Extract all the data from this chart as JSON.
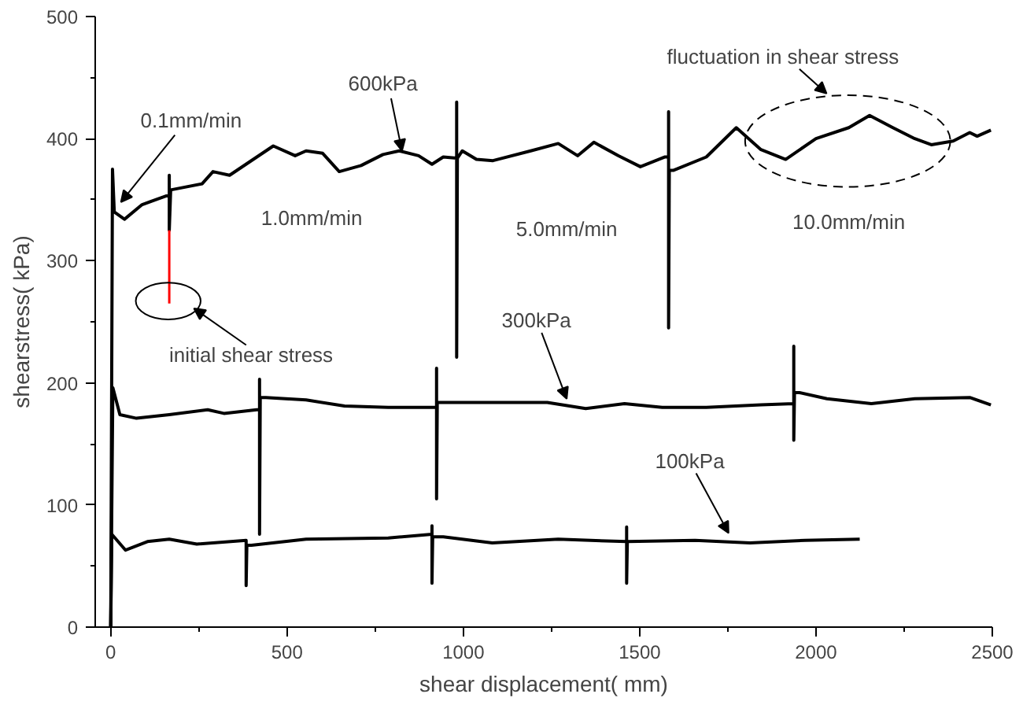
{
  "chart_data": {
    "type": "line",
    "xlabel": "shear displacement( mm)",
    "ylabel": "shearstress( kPa)",
    "xlim": [
      -44,
      2500
    ],
    "ylim": [
      0,
      500
    ],
    "xticks": [
      0,
      {
        "value": 250,
        "label": null
      },
      500,
      {
        "value": 750,
        "label": null
      },
      1000,
      {
        "value": 1250,
        "label": null
      },
      1500,
      {
        "value": 1750,
        "label": null
      },
      2000,
      {
        "value": 2250,
        "label": null
      },
      2500
    ],
    "yticks": [
      0,
      {
        "value": 50,
        "label": null
      },
      100,
      {
        "value": 150,
        "label": null
      },
      200,
      {
        "value": 250,
        "label": null
      },
      300,
      {
        "value": 350,
        "label": null
      },
      400,
      {
        "value": 450,
        "label": null
      },
      500
    ],
    "grid": false,
    "marker": "none",
    "line_style": "solid",
    "series": [
      {
        "color": "#000000",
        "x": [
          0,
          5,
          10,
          39,
          89,
          166,
          166,
          166,
          170,
          259,
          290,
          337,
          461,
          523,
          554,
          601,
          648,
          710,
          772,
          818,
          873,
          911,
          943,
          981,
          981,
          981,
          983,
          997,
          1037,
          1084,
          1191,
          1269,
          1324,
          1370,
          1440,
          1502,
          1572,
          1582,
          1582,
          1582,
          1584,
          1595,
          1689,
          1774,
          1844,
          1914,
          2000,
          2093,
          2152,
          2218,
          2280,
          2327,
          2389,
          2436,
          2457,
          2496
        ],
        "values": [
          0,
          375,
          340,
          334,
          346,
          354,
          370,
          325,
          358,
          363,
          373,
          370,
          394,
          386,
          390,
          388,
          373,
          378,
          387,
          390,
          386,
          379,
          385,
          384,
          430,
          221,
          384,
          390,
          383,
          382,
          390,
          396,
          386,
          397,
          386,
          377,
          385,
          385,
          422,
          245,
          374,
          374,
          385,
          409,
          391,
          383,
          400,
          409,
          419,
          409,
          400,
          395,
          398,
          405,
          402,
          407
        ]
      },
      {
        "color": "#000000",
        "x": [
          0,
          6,
          26,
          73,
          166,
          275,
          321,
          414,
          422,
          422,
          422,
          424,
          440,
          554,
          663,
          787,
          924,
          924,
          924,
          926,
          943,
          1082,
          1238,
          1347,
          1457,
          1564,
          1689,
          1844,
          1937,
          1937,
          1937,
          1939,
          1953,
          2031,
          2157,
          2280,
          2436,
          2496
        ],
        "values": [
          0,
          196,
          174,
          171,
          174,
          178,
          175,
          178,
          178,
          203,
          76,
          188,
          188,
          186,
          181,
          180,
          180,
          212,
          105,
          184,
          184,
          184,
          184,
          179,
          183,
          180,
          180,
          182,
          183,
          230,
          153,
          192,
          192,
          187,
          183,
          187,
          188,
          182
        ]
      },
      {
        "color": "#000000",
        "x": [
          0,
          3,
          42,
          104,
          166,
          244,
          384,
          384,
          386,
          399,
          554,
          787,
          911,
          911,
          911,
          913,
          943,
          1082,
          1269,
          1463,
          1463,
          1463,
          1465,
          1657,
          1813,
          1969,
          2124
        ],
        "values": [
          0,
          76,
          63,
          70,
          72,
          68,
          71,
          34,
          67,
          67,
          72,
          73,
          76,
          83,
          36,
          74,
          74,
          69,
          72,
          70,
          82,
          36,
          70,
          71,
          69,
          71,
          72
        ]
      },
      {
        "color": "#ff0000",
        "x": [
          166,
          166
        ],
        "values": [
          325,
          265
        ]
      }
    ],
    "annotations": [
      {
        "text": "600kPa",
        "x": 826,
        "y": 390
      },
      {
        "text": "0.1mm/min",
        "x": 29,
        "y": 348
      },
      "1.0mm/min",
      "5.0mm/min",
      "10.0mm/min",
      "fluctuation in shear stress",
      "initial shear stress",
      {
        "text": "300kPa",
        "x": 1293,
        "y": 187
      },
      {
        "text": "100kPa",
        "x": 1752,
        "y": 77
      }
    ]
  }
}
